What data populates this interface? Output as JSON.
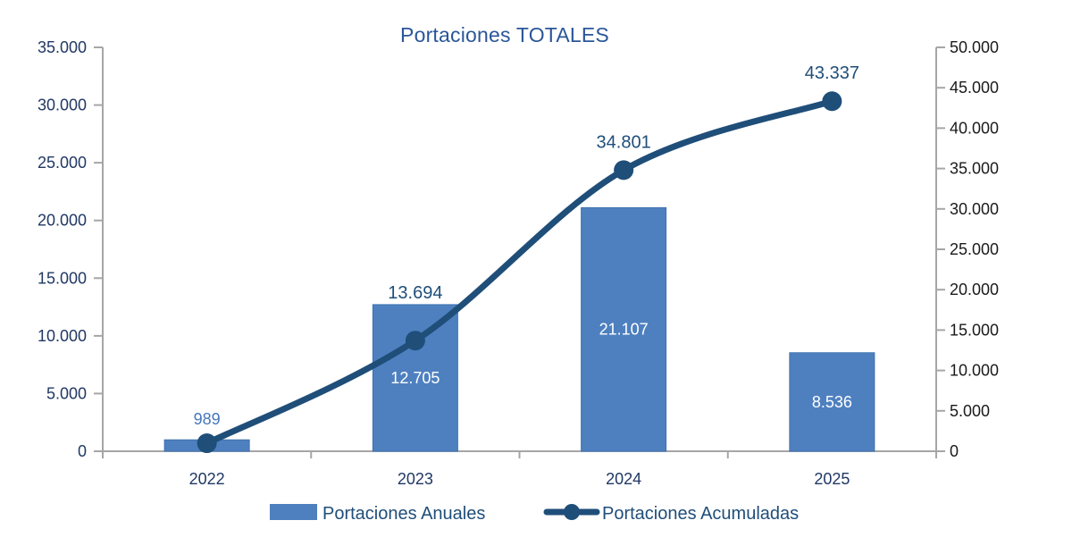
{
  "chart_data": {
    "type": "bar+line combo",
    "title": "Portaciones TOTALES",
    "categories": [
      "2022",
      "2023",
      "2024",
      "2025"
    ],
    "series": [
      {
        "name": "Portaciones Anuales",
        "type": "bar",
        "axis": "left",
        "values": [
          989,
          12705,
          21107,
          8536
        ],
        "labels": [
          "989",
          "12.705",
          "21.107",
          "8.536"
        ]
      },
      {
        "name": "Portaciones Acumuladas",
        "type": "line",
        "axis": "right",
        "smooth": true,
        "values": [
          989,
          13694,
          34801,
          43337
        ],
        "labels": [
          null,
          "13.694",
          "34.801",
          "43.337"
        ]
      }
    ],
    "left_axis": {
      "min": 0,
      "max": 35000,
      "step": 5000,
      "tick_labels": [
        "0",
        "5.000",
        "10.000",
        "15.000",
        "20.000",
        "25.000",
        "30.000",
        "35.000"
      ]
    },
    "right_axis": {
      "min": 0,
      "max": 50000,
      "step": 5000,
      "tick_labels": [
        "0",
        "5.000",
        "10.000",
        "15.000",
        "20.000",
        "25.000",
        "30.000",
        "35.000",
        "40.000",
        "45.000",
        "50.000"
      ]
    },
    "grid": false,
    "legend_position": "bottom"
  },
  "colors": {
    "bar": "#4E80C0",
    "bar_border": "#3E70AE",
    "line": "#1F4E79",
    "title": "#2A5699",
    "left_tick_label": "#203864",
    "right_tick_label": "#1A1A1A",
    "x_label": "#203864",
    "bar_label_inside": "#FFFFFF",
    "bar_label_outside": "#4577BB",
    "line_label": "#1F4E79",
    "legend_text": "#1F4E79",
    "axis_line": "#A6A6A6"
  }
}
